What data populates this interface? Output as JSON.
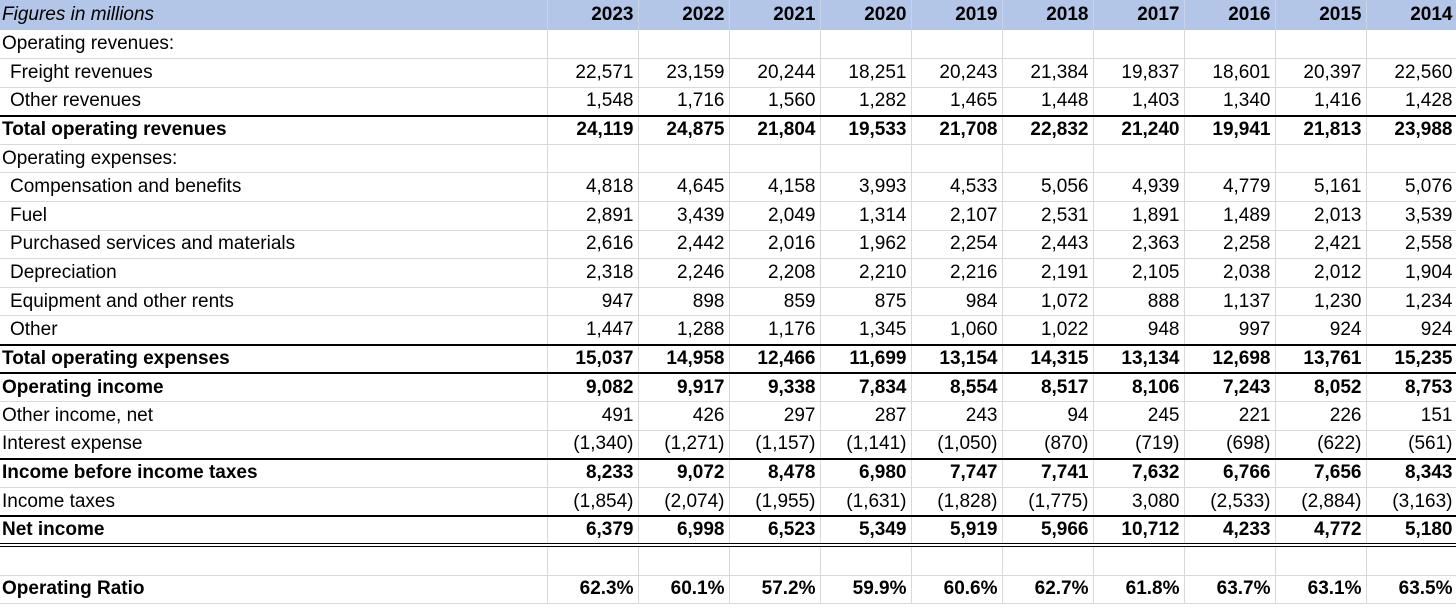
{
  "header": {
    "label": "Figures in millions",
    "years": [
      "2023",
      "2022",
      "2021",
      "2020",
      "2019",
      "2018",
      "2017",
      "2016",
      "2015",
      "2014"
    ]
  },
  "rows": [
    {
      "label": "Operating revenues:",
      "values": [
        "",
        "",
        "",
        "",
        "",
        "",
        "",
        "",
        "",
        ""
      ]
    },
    {
      "label": "Freight revenues",
      "values": [
        "22,571",
        "23,159",
        "20,244",
        "18,251",
        "20,243",
        "21,384",
        "19,837",
        "18,601",
        "20,397",
        "22,560"
      ]
    },
    {
      "label": "Other revenues",
      "values": [
        "1,548",
        "1,716",
        "1,560",
        "1,282",
        "1,465",
        "1,448",
        "1,403",
        "1,340",
        "1,416",
        "1,428"
      ]
    },
    {
      "label": "Total operating revenues",
      "values": [
        "24,119",
        "24,875",
        "21,804",
        "19,533",
        "21,708",
        "22,832",
        "21,240",
        "19,941",
        "21,813",
        "23,988"
      ]
    },
    {
      "label": "Operating expenses:",
      "values": [
        "",
        "",
        "",
        "",
        "",
        "",
        "",
        "",
        "",
        ""
      ]
    },
    {
      "label": "Compensation and benefits",
      "values": [
        "4,818",
        "4,645",
        "4,158",
        "3,993",
        "4,533",
        "5,056",
        "4,939",
        "4,779",
        "5,161",
        "5,076"
      ]
    },
    {
      "label": "Fuel",
      "values": [
        "2,891",
        "3,439",
        "2,049",
        "1,314",
        "2,107",
        "2,531",
        "1,891",
        "1,489",
        "2,013",
        "3,539"
      ]
    },
    {
      "label": "Purchased services and materials",
      "values": [
        "2,616",
        "2,442",
        "2,016",
        "1,962",
        "2,254",
        "2,443",
        "2,363",
        "2,258",
        "2,421",
        "2,558"
      ]
    },
    {
      "label": "Depreciation",
      "values": [
        "2,318",
        "2,246",
        "2,208",
        "2,210",
        "2,216",
        "2,191",
        "2,105",
        "2,038",
        "2,012",
        "1,904"
      ]
    },
    {
      "label": "Equipment and other rents",
      "values": [
        "947",
        "898",
        "859",
        "875",
        "984",
        "1,072",
        "888",
        "1,137",
        "1,230",
        "1,234"
      ]
    },
    {
      "label": "Other",
      "values": [
        "1,447",
        "1,288",
        "1,176",
        "1,345",
        "1,060",
        "1,022",
        "948",
        "997",
        "924",
        "924"
      ]
    },
    {
      "label": "Total operating expenses",
      "values": [
        "15,037",
        "14,958",
        "12,466",
        "11,699",
        "13,154",
        "14,315",
        "13,134",
        "12,698",
        "13,761",
        "15,235"
      ]
    },
    {
      "label": "Operating income",
      "values": [
        "9,082",
        "9,917",
        "9,338",
        "7,834",
        "8,554",
        "8,517",
        "8,106",
        "7,243",
        "8,052",
        "8,753"
      ]
    },
    {
      "label": "Other income, net",
      "values": [
        "491",
        "426",
        "297",
        "287",
        "243",
        "94",
        "245",
        "221",
        "226",
        "151"
      ]
    },
    {
      "label": "Interest expense",
      "values": [
        "(1,340)",
        "(1,271)",
        "(1,157)",
        "(1,141)",
        "(1,050)",
        "(870)",
        "(719)",
        "(698)",
        "(622)",
        "(561)"
      ]
    },
    {
      "label": "Income before income taxes",
      "values": [
        "8,233",
        "9,072",
        "8,478",
        "6,980",
        "7,747",
        "7,741",
        "7,632",
        "6,766",
        "7,656",
        "8,343"
      ]
    },
    {
      "label": "Income taxes",
      "values": [
        "(1,854)",
        "(2,074)",
        "(1,955)",
        "(1,631)",
        "(1,828)",
        "(1,775)",
        "3,080",
        "(2,533)",
        "(2,884)",
        "(3,163)"
      ]
    },
    {
      "label": "Net income",
      "values": [
        "6,379",
        "6,998",
        "6,523",
        "5,349",
        "5,919",
        "5,966",
        "10,712",
        "4,233",
        "4,772",
        "5,180"
      ]
    },
    {
      "label": "",
      "values": [
        "",
        "",
        "",
        "",
        "",
        "",
        "",
        "",
        "",
        ""
      ]
    },
    {
      "label": "Operating Ratio",
      "values": [
        "62.3%",
        "60.1%",
        "57.2%",
        "59.9%",
        "60.6%",
        "62.7%",
        "61.8%",
        "63.7%",
        "63.1%",
        "63.5%"
      ]
    }
  ]
}
